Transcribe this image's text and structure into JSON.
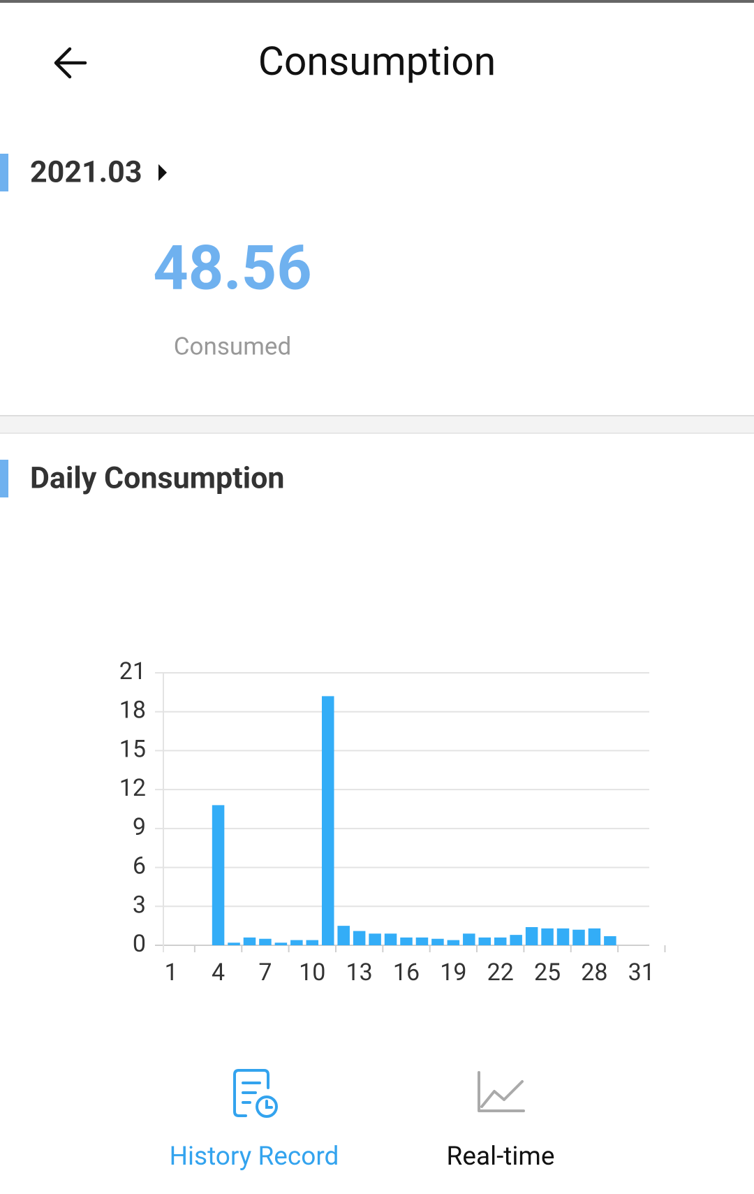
{
  "header": {
    "title": "Consumption"
  },
  "summary": {
    "period": "2021.03",
    "total": "48.56",
    "total_label": "Consumed"
  },
  "nav": {
    "items": [
      "History Record",
      "Real-time"
    ]
  },
  "chart_data": {
    "type": "bar",
    "title": "Daily Consumption",
    "categories": [
      1,
      null,
      null,
      4,
      null,
      null,
      7,
      null,
      null,
      10,
      null,
      null,
      13,
      null,
      null,
      16,
      null,
      null,
      19,
      null,
      null,
      22,
      null,
      null,
      25,
      null,
      null,
      28,
      null,
      null,
      31
    ],
    "values": [
      0,
      0,
      0,
      10.8,
      0.2,
      0.6,
      0.5,
      0.2,
      0.4,
      0.4,
      19.2,
      1.5,
      1.1,
      0.9,
      0.9,
      0.6,
      0.6,
      0.5,
      0.4,
      0.9,
      0.6,
      0.6,
      0.8,
      1.4,
      1.3,
      1.3,
      1.2,
      1.3,
      0.7,
      0,
      0
    ],
    "color": "#33adf7",
    "ylim": [
      0,
      21
    ],
    "yticks": [
      0,
      3,
      6,
      9,
      12,
      15,
      18,
      21
    ],
    "grid": true
  }
}
